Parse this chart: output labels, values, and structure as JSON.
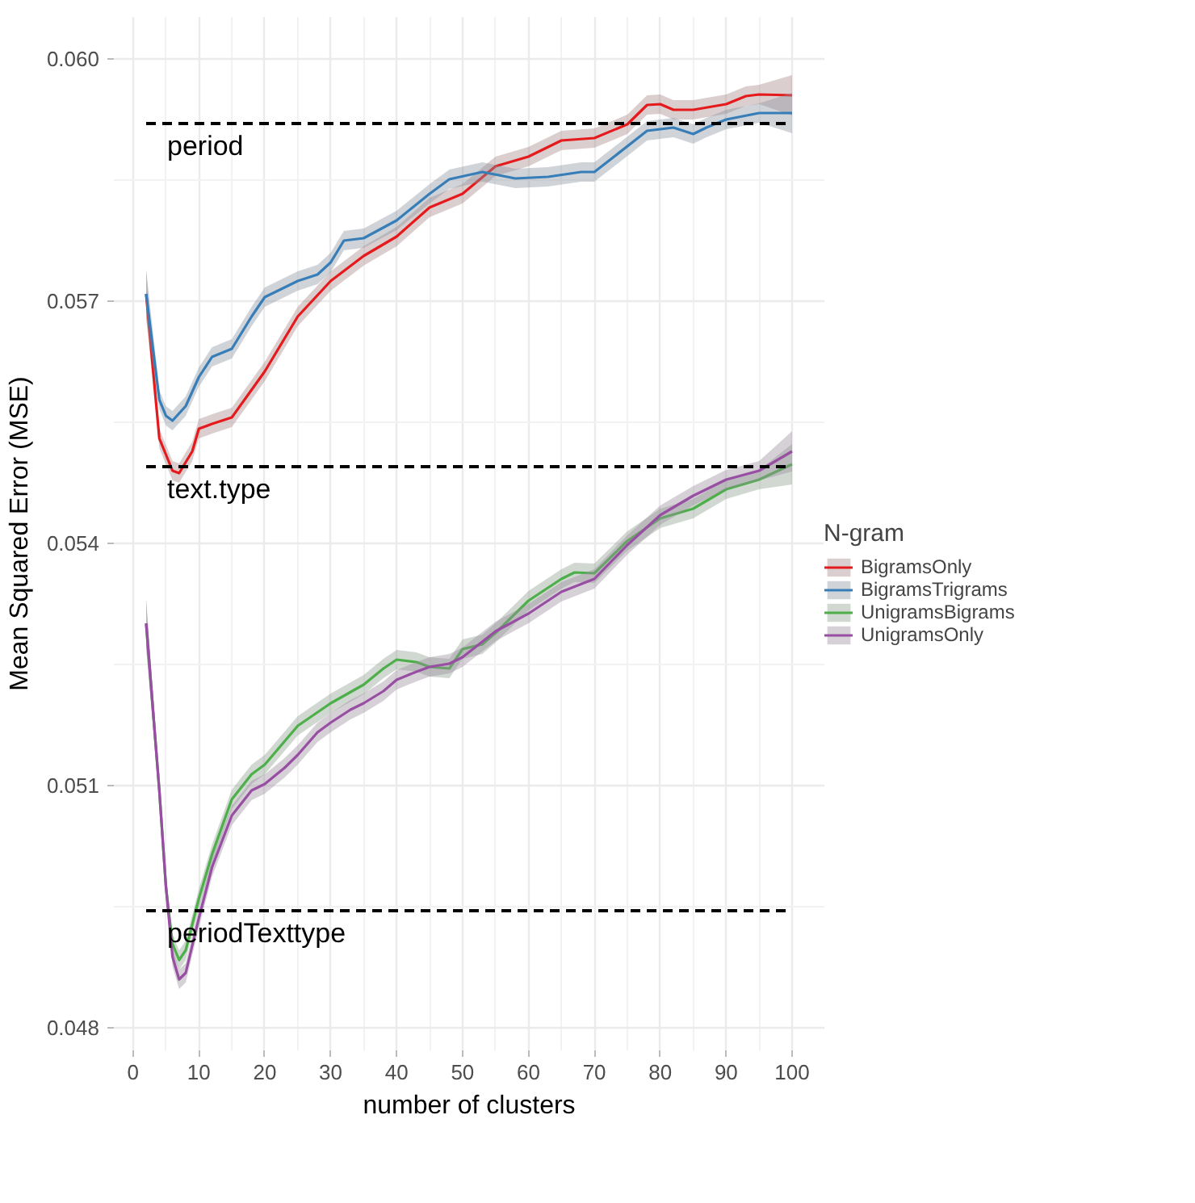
{
  "chart_data": {
    "type": "line",
    "xlabel": "number of clusters",
    "ylabel": "Mean Squared Error (MSE)",
    "legend_title": "N-gram",
    "xlim": [
      -2.9,
      104.9
    ],
    "ylim": [
      0.04772,
      0.06052
    ],
    "xticks": [
      0,
      10,
      20,
      30,
      40,
      50,
      60,
      70,
      80,
      90,
      100
    ],
    "yticks": [
      0.048,
      0.051,
      0.054,
      0.057,
      {
        "value": 0.06,
        "label": "0.060"
      }
    ],
    "grid": true,
    "legend": "right",
    "line_style": "solid",
    "marker": "none",
    "ref_lines": [
      {
        "axis": "y",
        "value": 0.0592,
        "label": "period",
        "color": "#000000",
        "line_style": "dashed"
      },
      {
        "axis": "y",
        "value": 0.05495,
        "label": "text.type",
        "color": "#000000",
        "line_style": "dashed"
      },
      {
        "axis": "y",
        "value": 0.04945,
        "label": "periodTexttype",
        "color": "#000000",
        "line_style": "dashed"
      }
    ],
    "series": [
      {
        "name": "BigramsOnly",
        "color": "#e41a1c",
        "x": [
          2,
          4,
          6,
          7,
          9,
          10,
          12,
          15,
          20,
          25,
          30,
          35,
          40,
          45,
          50,
          55,
          60,
          65,
          70,
          75,
          78,
          80,
          82,
          85,
          90,
          93,
          95,
          100
        ],
        "values": [
          0.05709,
          0.0553,
          0.0549,
          0.05487,
          0.05514,
          0.05542,
          0.05548,
          0.05556,
          0.05613,
          0.05681,
          0.05725,
          0.05756,
          0.0578,
          0.05816,
          0.05833,
          0.05867,
          0.05879,
          0.05899,
          0.05902,
          0.05919,
          0.05943,
          0.05944,
          0.05937,
          0.05937,
          0.05944,
          0.05954,
          0.05956,
          0.05955
        ],
        "lower": [
          0.05679,
          0.05518,
          0.05478,
          0.05475,
          0.05502,
          0.0553,
          0.05536,
          0.05544,
          0.05601,
          0.05669,
          0.05713,
          0.05744,
          0.05768,
          0.05804,
          0.05821,
          0.05855,
          0.05867,
          0.05887,
          0.0589,
          0.05907,
          0.05931,
          0.05932,
          0.05925,
          0.05925,
          0.05932,
          0.05942,
          0.05944,
          0.0593
        ],
        "upper": [
          0.05739,
          0.05542,
          0.05502,
          0.05499,
          0.05526,
          0.05554,
          0.0556,
          0.05568,
          0.05625,
          0.05693,
          0.05737,
          0.05768,
          0.05792,
          0.05828,
          0.05845,
          0.05879,
          0.05891,
          0.05911,
          0.05914,
          0.05931,
          0.05955,
          0.05956,
          0.05949,
          0.05949,
          0.05956,
          0.05966,
          0.05968,
          0.0598
        ]
      },
      {
        "name": "BigramsTrigrams",
        "color": "#377eb8",
        "x": [
          2,
          4,
          5,
          6,
          8,
          10,
          12,
          15,
          18,
          20,
          25,
          28,
          30,
          32,
          35,
          40,
          45,
          48,
          53,
          58,
          63,
          68,
          70,
          73,
          78,
          82,
          85,
          87,
          90,
          95,
          100
        ],
        "values": [
          0.05709,
          0.05578,
          0.05558,
          0.05552,
          0.0557,
          0.05606,
          0.05631,
          0.05641,
          0.05681,
          0.05705,
          0.05725,
          0.05733,
          0.05748,
          0.05775,
          0.05778,
          0.058,
          0.05833,
          0.05851,
          0.0586,
          0.05852,
          0.05854,
          0.0586,
          0.0586,
          0.05879,
          0.05911,
          0.05915,
          0.05907,
          0.05915,
          0.05925,
          0.05933,
          0.05933
        ],
        "lower": [
          0.05679,
          0.05566,
          0.05546,
          0.0554,
          0.05558,
          0.05594,
          0.05619,
          0.05629,
          0.05669,
          0.05693,
          0.05713,
          0.05721,
          0.05736,
          0.05763,
          0.05766,
          0.05788,
          0.05821,
          0.05839,
          0.05848,
          0.0584,
          0.05842,
          0.05848,
          0.05848,
          0.05867,
          0.05899,
          0.05903,
          0.05895,
          0.05903,
          0.05913,
          0.05921,
          0.05908
        ],
        "upper": [
          0.05739,
          0.0559,
          0.0557,
          0.05564,
          0.05582,
          0.05618,
          0.05643,
          0.05653,
          0.05693,
          0.05717,
          0.05737,
          0.05745,
          0.0576,
          0.05787,
          0.0579,
          0.05812,
          0.05845,
          0.05863,
          0.05872,
          0.05864,
          0.05866,
          0.05872,
          0.05872,
          0.05891,
          0.05923,
          0.05927,
          0.05919,
          0.05927,
          0.05937,
          0.05945,
          0.05958
        ]
      },
      {
        "name": "UnigramsBigrams",
        "color": "#4daf4a",
        "x": [
          2,
          4,
          5,
          6,
          7,
          8,
          10,
          12,
          15,
          18,
          20,
          25,
          30,
          35,
          38,
          40,
          43,
          45,
          48,
          50,
          53,
          55,
          60,
          65,
          67,
          70,
          75,
          80,
          85,
          90,
          95,
          100
        ],
        "values": [
          0.05301,
          0.05094,
          0.04975,
          0.04904,
          0.04884,
          0.04896,
          0.0496,
          0.05015,
          0.05083,
          0.05114,
          0.05126,
          0.05174,
          0.05202,
          0.05225,
          0.05245,
          0.05256,
          0.05253,
          0.05247,
          0.05245,
          0.05269,
          0.05275,
          0.05289,
          0.05329,
          0.05356,
          0.05364,
          0.05363,
          0.05403,
          0.05431,
          0.05443,
          0.05467,
          0.05479,
          0.05498
        ],
        "lower": [
          0.05271,
          0.05082,
          0.04963,
          0.04892,
          0.04872,
          0.04884,
          0.04948,
          0.05003,
          0.05071,
          0.05102,
          0.05114,
          0.05162,
          0.0519,
          0.05213,
          0.05233,
          0.05244,
          0.05241,
          0.05235,
          0.05233,
          0.05257,
          0.05263,
          0.05277,
          0.05317,
          0.05344,
          0.05352,
          0.05351,
          0.05391,
          0.05419,
          0.05431,
          0.05455,
          0.05467,
          0.05473
        ],
        "upper": [
          0.05331,
          0.05106,
          0.04987,
          0.04916,
          0.04896,
          0.04908,
          0.04972,
          0.05027,
          0.05095,
          0.05126,
          0.05138,
          0.05186,
          0.05214,
          0.05237,
          0.05257,
          0.05268,
          0.05265,
          0.05259,
          0.05257,
          0.05281,
          0.05287,
          0.05301,
          0.05341,
          0.05368,
          0.05376,
          0.05375,
          0.05415,
          0.05443,
          0.05455,
          0.05479,
          0.05491,
          0.05523
        ]
      },
      {
        "name": "UnigramsOnly",
        "color": "#984ea3",
        "x": [
          2,
          4,
          5,
          6,
          7,
          8,
          10,
          12,
          15,
          18,
          20,
          23,
          25,
          28,
          30,
          33,
          35,
          38,
          40,
          43,
          45,
          48,
          50,
          55,
          60,
          65,
          70,
          75,
          80,
          85,
          90,
          95,
          100
        ],
        "values": [
          0.05301,
          0.05094,
          0.04975,
          0.04888,
          0.0486,
          0.04868,
          0.04936,
          0.04999,
          0.05063,
          0.05094,
          0.05102,
          0.05122,
          0.05138,
          0.05166,
          0.05178,
          0.05194,
          0.05202,
          0.05217,
          0.05231,
          0.05241,
          0.05247,
          0.05251,
          0.05259,
          0.05291,
          0.05313,
          0.0534,
          0.05356,
          0.05398,
          0.05435,
          0.05459,
          0.05479,
          0.0549,
          0.05514
        ],
        "lower": [
          0.05271,
          0.05082,
          0.04963,
          0.04876,
          0.04848,
          0.04856,
          0.04924,
          0.04987,
          0.05051,
          0.05082,
          0.0509,
          0.0511,
          0.05126,
          0.05154,
          0.05166,
          0.05182,
          0.0519,
          0.05205,
          0.05219,
          0.05229,
          0.05235,
          0.05239,
          0.05247,
          0.05279,
          0.05301,
          0.05328,
          0.05344,
          0.05386,
          0.05423,
          0.05447,
          0.05467,
          0.05478,
          0.05489
        ],
        "upper": [
          0.05331,
          0.05106,
          0.04987,
          0.049,
          0.04872,
          0.0488,
          0.04948,
          0.05011,
          0.05075,
          0.05106,
          0.05114,
          0.05134,
          0.0515,
          0.05178,
          0.0519,
          0.05206,
          0.05214,
          0.05229,
          0.05243,
          0.05253,
          0.05259,
          0.05263,
          0.05271,
          0.05303,
          0.05325,
          0.05352,
          0.05368,
          0.0541,
          0.05447,
          0.05471,
          0.05491,
          0.05502,
          0.05539
        ]
      }
    ]
  }
}
